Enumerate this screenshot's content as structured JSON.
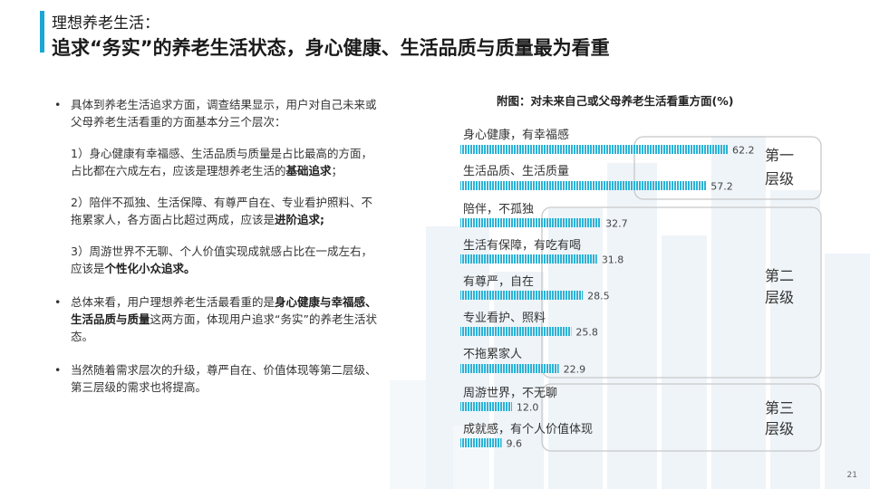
{
  "header": {
    "subtitle": "理想养老生活：",
    "title": "追求“务实”的养老生活状态，身心健康、生活品质与质量最为看重"
  },
  "text": {
    "b1": "具体到养老生活追求方面，调查结果显示，用户对自己未来或父母养老生活看重的方面基本分三个层次：",
    "p1_a": "1）身心健康有幸福感、生活品质与质量是占比最高的方面，占比都在六成左右，应该是理想养老生活的",
    "p1_b": "基础追求",
    "p1_c": "；",
    "p2_a": "2）陪伴不孤独、生活保障、有尊严自在、专业看护照料、不拖累家人，各方面占比超过两成，应该是",
    "p2_b": "进阶追求;",
    "p3_a": "3）周游世界不无聊、个人价值实现成就感占比在一成左右，应该是",
    "p3_b": "个性化小众追求。",
    "b2_a": "总体来看，用户理想养老生活最看重的是",
    "b2_b": "身心健康与幸福感、生活品质与质量",
    "b2_c": "这两方面，体现用户追求“务实”的养老生活状态。",
    "b3": "当然随着需求层次的升级，尊严自在、价值体现等第二层级、第三层级的需求也将提高。"
  },
  "page_number": "21",
  "colors": {
    "accent": "#1aa6d6",
    "bar": "#2bb3d6",
    "group_border": "#c8c8c8",
    "deco": "#eef4f8"
  },
  "chart_data": {
    "type": "bar",
    "orientation": "horizontal",
    "title": "附图：对未来自己或父母养老生活看重方面(%)",
    "categories": [
      "身心健康，有幸福感",
      "生活品质、生活质量",
      "陪伴，不孤独",
      "生活有保障，有吃有喝",
      "有尊严，自在",
      "专业看护、照料",
      "不拖累家人",
      "周游世界，不无聊",
      "成就感，有个人价值体现"
    ],
    "values": [
      62.2,
      57.2,
      32.7,
      31.8,
      28.5,
      25.8,
      22.9,
      12.0,
      9.6
    ],
    "value_labels": [
      "62.2",
      "57.2",
      "32.7",
      "31.8",
      "28.5",
      "25.8",
      "22.9",
      "12.0",
      "9.6"
    ],
    "groups": [
      {
        "label_line1": "第一",
        "label_line2": "层级",
        "members": [
          0,
          1
        ]
      },
      {
        "label_line1": "第二",
        "label_line2": "层级",
        "members": [
          2,
          3,
          4,
          5,
          6
        ]
      },
      {
        "label_line1": "第三",
        "label_line2": "层级",
        "members": [
          7,
          8
        ]
      }
    ],
    "xlim": [
      0,
      62.2
    ],
    "grid": false,
    "legend": "none"
  }
}
